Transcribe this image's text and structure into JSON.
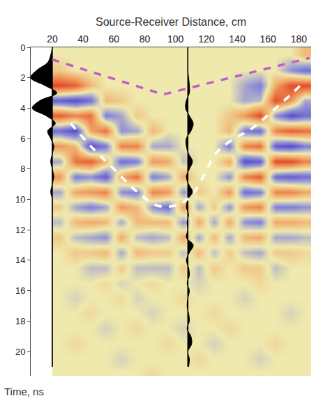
{
  "chart_data": {
    "type": "radargram",
    "x_label": "Source-Receiver Distance, cm",
    "y_label": "Time, ns",
    "xlim": [
      6,
      188
    ],
    "ylim": [
      0,
      21.6
    ],
    "xticks": [
      20,
      40,
      60,
      80,
      100,
      120,
      140,
      160,
      180
    ],
    "yticks": [
      0,
      2,
      4,
      6,
      8,
      10,
      12,
      14,
      16,
      18,
      20
    ],
    "heatmap": {
      "x_edges": [
        20,
        30,
        40,
        50,
        60,
        70,
        80,
        90,
        100,
        110,
        120,
        130,
        140,
        150,
        160,
        170,
        180,
        188
      ],
      "y_edges": [
        0,
        1,
        2,
        3,
        4,
        5,
        6,
        7,
        8,
        9,
        10,
        11,
        12,
        13,
        14,
        15,
        16,
        17,
        18,
        19,
        20,
        21,
        21.6
      ],
      "zlim": [
        -1,
        1
      ],
      "z": [
        [
          0,
          0,
          0,
          0,
          0,
          0,
          0,
          0,
          0,
          0,
          0,
          0,
          0,
          0,
          0,
          0,
          0.3
        ],
        [
          0.2,
          0,
          0,
          0,
          0,
          0,
          0,
          0,
          0,
          0,
          0,
          0,
          0,
          0,
          0,
          -0.4,
          -0.6
        ],
        [
          0.9,
          0.8,
          0.3,
          0,
          0,
          0,
          0,
          0,
          0,
          0,
          0,
          0,
          -0.3,
          -0.5,
          0.4,
          0.9,
          0.9
        ],
        [
          -0.7,
          -0.8,
          -0.6,
          0.3,
          0.2,
          0,
          0,
          0,
          0,
          0,
          0,
          0,
          -0.3,
          -0.2,
          0.9,
          0.5,
          -0.3
        ],
        [
          0.8,
          0.6,
          0.7,
          -0.5,
          -0.3,
          0.2,
          0,
          0,
          0,
          0,
          0,
          0.2,
          0.5,
          0.9,
          -0.4,
          -0.8,
          -0.6
        ],
        [
          -0.6,
          -0.8,
          0.4,
          0.7,
          -0.4,
          -0.3,
          0.3,
          0,
          0,
          0,
          0,
          0.3,
          -0.5,
          -0.6,
          0.6,
          0.8,
          0.7
        ],
        [
          0.5,
          0.3,
          -0.8,
          -0.5,
          0.6,
          0.6,
          -0.3,
          -0.3,
          0,
          0,
          0,
          -0.5,
          0.6,
          0.7,
          -0.7,
          -0.8,
          -0.5
        ],
        [
          -0.3,
          0.7,
          0.8,
          0.3,
          -0.6,
          -0.5,
          0.5,
          0.4,
          -0.2,
          0,
          0,
          0.4,
          -0.8,
          -0.7,
          0.9,
          0.9,
          0.6
        ],
        [
          0.5,
          -0.5,
          -0.4,
          -0.7,
          0.4,
          0.7,
          -0.5,
          -0.3,
          0.4,
          0,
          0,
          -0.4,
          0.6,
          0.8,
          -0.6,
          -0.7,
          -0.6
        ],
        [
          -0.3,
          0.4,
          0.5,
          0.6,
          -0.4,
          -0.5,
          0.6,
          0.5,
          -0.4,
          0.2,
          0,
          0.5,
          -0.6,
          -0.5,
          0.6,
          0.6,
          0.4
        ],
        [
          0.2,
          -0.3,
          -0.5,
          -0.3,
          0.5,
          0.3,
          -0.4,
          -0.6,
          0.5,
          -0.3,
          0.2,
          -0.4,
          0.5,
          0.6,
          -0.5,
          -0.5,
          -0.4
        ],
        [
          -0.2,
          0.3,
          0.4,
          0.3,
          -0.3,
          0.3,
          0.3,
          0.3,
          -0.4,
          0.4,
          -0.3,
          0.4,
          -0.4,
          -0.5,
          0.4,
          0.4,
          0.3
        ],
        [
          0.2,
          -0.2,
          -0.3,
          -0.4,
          0.4,
          -0.2,
          -0.3,
          -0.2,
          0.4,
          -0.3,
          0.3,
          -0.3,
          0.3,
          0.4,
          -0.3,
          -0.3,
          -0.2
        ],
        [
          0,
          0.2,
          0.2,
          0.3,
          -0.3,
          0.3,
          0.2,
          0.2,
          -0.2,
          0.3,
          -0.2,
          0.2,
          -0.2,
          -0.3,
          0.2,
          0.2,
          0.1
        ],
        [
          0,
          0,
          -0.2,
          -0.2,
          0.2,
          -0.2,
          -0.2,
          -0.2,
          0.2,
          -0.2,
          0.2,
          0,
          0.2,
          0.2,
          -0.2,
          0,
          0
        ],
        [
          0,
          0,
          0,
          0.1,
          -0.1,
          0,
          0.1,
          0,
          0,
          -0.1,
          0,
          0,
          0,
          0.1,
          0,
          0,
          0
        ],
        [
          0,
          -0.1,
          0,
          0,
          0.1,
          -0.1,
          0,
          0,
          0.1,
          0,
          0,
          0,
          -0.1,
          0,
          0,
          0,
          0
        ],
        [
          0,
          0,
          0.1,
          0,
          0,
          0,
          -0.1,
          0,
          0,
          0,
          0.1,
          0,
          0,
          0,
          0,
          -0.1,
          0
        ],
        [
          0,
          0,
          0,
          -0.1,
          0,
          0.1,
          0,
          0,
          -0.1,
          0,
          0,
          0.1,
          0,
          0,
          0,
          0,
          0
        ],
        [
          0,
          0.1,
          0,
          0,
          0,
          0,
          0,
          0.1,
          0,
          0,
          -0.1,
          0,
          0,
          0,
          0.1,
          0,
          0
        ],
        [
          0,
          0,
          0,
          0,
          -0.1,
          0,
          0,
          0,
          0,
          0.1,
          0,
          0,
          0,
          -0.1,
          0,
          0,
          0
        ],
        [
          0,
          0,
          0,
          0,
          0,
          0,
          0.1,
          0,
          0,
          0,
          0,
          0,
          0,
          0,
          0,
          0,
          0
        ]
      ]
    },
    "lines": [
      {
        "color": "#c25fc4",
        "line_style": "dashed",
        "x": [
          20,
          92,
          187
        ],
        "y": [
          0.8,
          3.1,
          0.7
        ]
      },
      {
        "color": "#ffffff",
        "line_style": "dashed",
        "x": [
          32,
          45,
          60,
          75,
          88,
          100,
          110,
          118,
          126,
          135,
          150,
          165,
          176,
          182
        ],
        "y": [
          5.0,
          6.5,
          8.0,
          9.5,
          10.4,
          10.4,
          9.8,
          8.5,
          7.0,
          6.2,
          5.3,
          4.0,
          3.0,
          2.4
        ]
      }
    ],
    "traces": [
      {
        "position": 20,
        "t": [
          0,
          0.5,
          1,
          1.5,
          2,
          2.5,
          3,
          3.5,
          4,
          4.5,
          5,
          5.5,
          6,
          6.5,
          7,
          7.5,
          8,
          8.5,
          9,
          9.5,
          10,
          10.5,
          11,
          11.5,
          12,
          12.5,
          13,
          13.5,
          14,
          14.5,
          15,
          15.5,
          16,
          16.5,
          17,
          17.5,
          18,
          18.5,
          19,
          19.5,
          20,
          20.5,
          21
        ],
        "amplitude": [
          0,
          -1,
          -3,
          -10,
          -14,
          -5,
          3,
          -8,
          -13,
          -4,
          2,
          -3,
          -1,
          1,
          0,
          -1,
          0,
          1,
          0,
          -1,
          0,
          0,
          0,
          0,
          0,
          0,
          0,
          0,
          0,
          0,
          0,
          0,
          0,
          0,
          0,
          0,
          0,
          0,
          0,
          0,
          0,
          0,
          0
        ]
      },
      {
        "position": 108,
        "t": [
          0,
          0.5,
          1,
          1.5,
          2,
          2.5,
          3,
          3.5,
          4,
          4.5,
          5,
          5.5,
          6,
          6.5,
          7,
          7.5,
          8,
          8.5,
          9,
          9.5,
          10,
          10.5,
          11,
          11.5,
          12,
          12.5,
          13,
          13.5,
          14,
          14.5,
          15,
          15.5,
          16,
          16.5,
          17,
          17.5,
          18,
          18.5,
          19,
          19.5,
          20,
          20.5,
          21
        ],
        "amplitude": [
          0,
          0,
          0,
          0,
          0.5,
          1,
          1,
          -1,
          -1.5,
          1,
          3.5,
          2,
          -1,
          -1,
          0.5,
          3,
          1,
          -1,
          0.5,
          3,
          0,
          -1,
          0.5,
          -0.5,
          0,
          -1,
          3.5,
          1,
          -1,
          0.5,
          1,
          -0.5,
          1,
          0,
          -0.5,
          0.5,
          1,
          -0.5,
          2,
          2.5,
          0,
          1,
          0.5
        ]
      }
    ]
  }
}
